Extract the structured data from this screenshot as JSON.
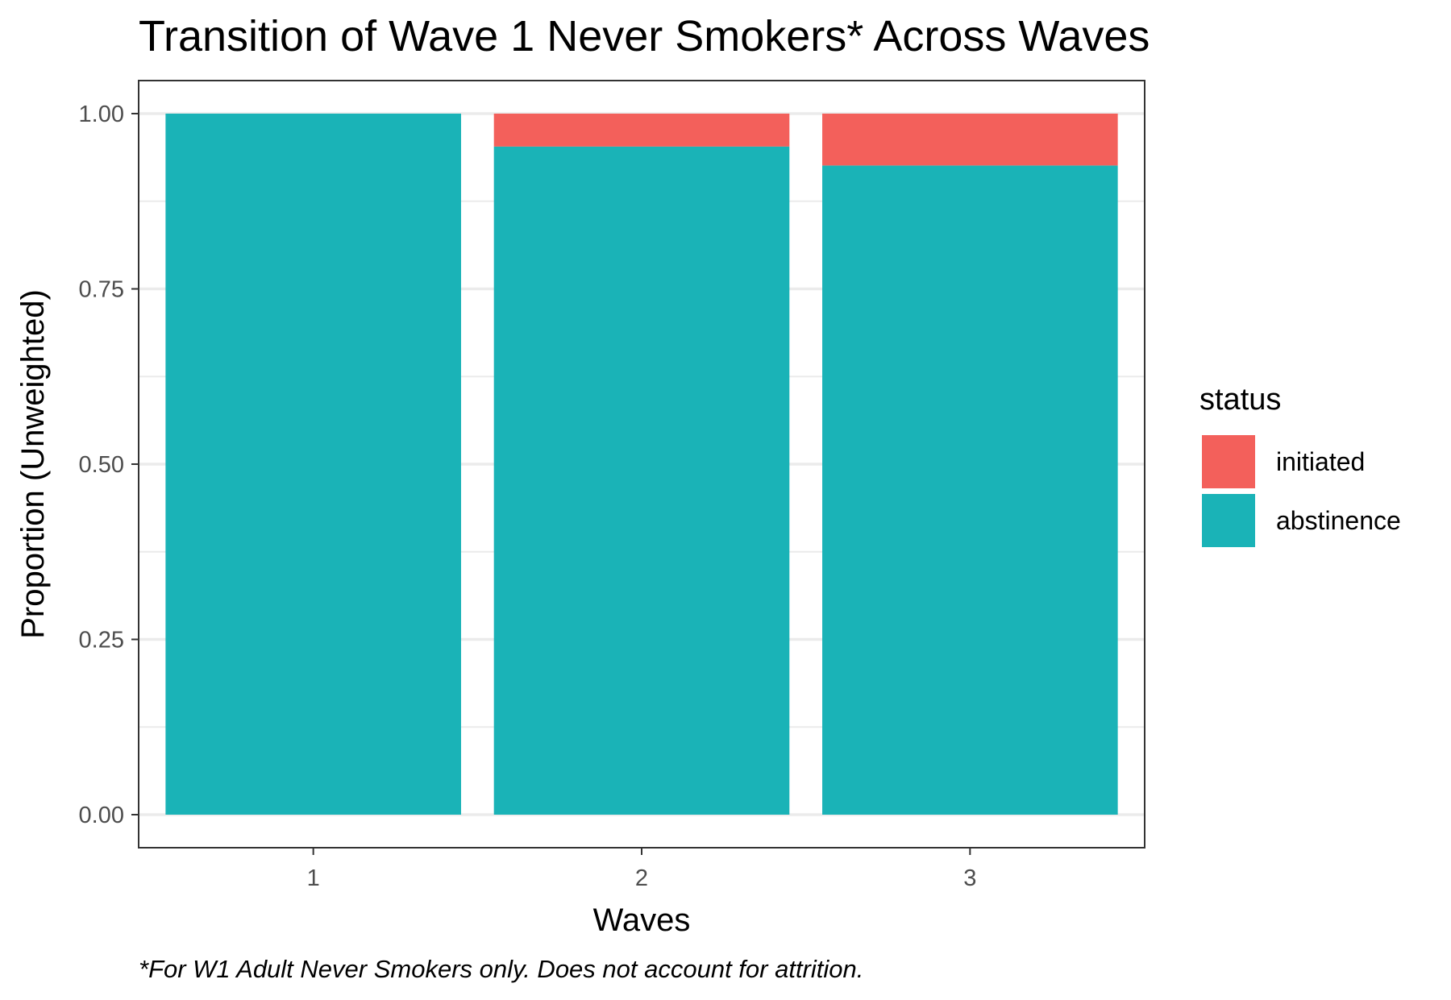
{
  "chart_data": {
    "type": "bar",
    "stacked": true,
    "title": "Transition of Wave 1 Never Smokers* Across Waves",
    "xlabel": "Waves",
    "ylabel": "Proportion (Unweighted)",
    "caption": "*For W1 Adult Never Smokers only. Does not account for attrition.",
    "categories": [
      "1",
      "2",
      "3"
    ],
    "ylim": [
      0,
      1
    ],
    "y_ticks": [
      "0.00",
      "0.25",
      "0.50",
      "0.75",
      "1.00"
    ],
    "y_tick_values": [
      0,
      0.25,
      0.5,
      0.75,
      1.0
    ],
    "grid": true,
    "legend": {
      "title": "status",
      "position": "right",
      "entries": [
        "initiated",
        "abstinence"
      ]
    },
    "series": [
      {
        "name": "abstinence",
        "color": "#1ab3b7",
        "values": [
          1.0,
          0.953,
          0.926
        ]
      },
      {
        "name": "initiated",
        "color": "#f3605b",
        "values": [
          0.0,
          0.047,
          0.074
        ]
      }
    ]
  }
}
